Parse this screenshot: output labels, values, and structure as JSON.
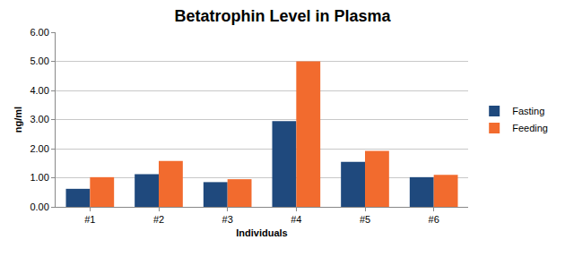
{
  "chart_data": {
    "type": "bar",
    "title": "Betatrophin Level in Plasma",
    "x_label": "Individuals",
    "y_label": "ng/ml",
    "categories": [
      "#1",
      "#2",
      "#3",
      "#4",
      "#5",
      "#6"
    ],
    "series": [
      {
        "name": "Fasting",
        "color": "#1F497D",
        "values": [
          0.62,
          1.12,
          0.85,
          2.95,
          1.55,
          1.02
        ]
      },
      {
        "name": "Feeding",
        "color": "#F26B2E",
        "values": [
          1.02,
          1.58,
          0.95,
          5.0,
          1.92,
          1.1
        ]
      }
    ],
    "ylim": [
      0,
      6
    ],
    "yticks": [
      {
        "value": 0,
        "label": "0.00"
      },
      {
        "value": 1,
        "label": "1.00"
      },
      {
        "value": 2,
        "label": "2.00"
      },
      {
        "value": 3,
        "label": "3.00"
      },
      {
        "value": 4,
        "label": "4.00"
      },
      {
        "value": 5,
        "label": "5.00"
      },
      {
        "value": 6,
        "label": "6.00"
      }
    ],
    "grid": true,
    "legend": "right"
  }
}
